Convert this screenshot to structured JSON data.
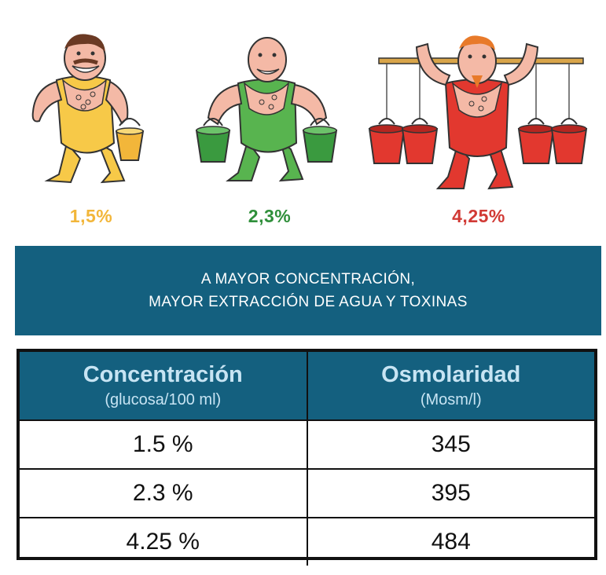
{
  "figures": [
    {
      "label": "1,5%",
      "color": "#f2b63a"
    },
    {
      "label": "2,3%",
      "color": "#2f8f3a"
    },
    {
      "label": "4,25%",
      "color": "#d13a35"
    }
  ],
  "banner": {
    "line1": "A MAYOR CONCENTRACIÓN,",
    "line2": "MAYOR EXTRACCIÓN DE AGUA Y TOXINAS"
  },
  "table": {
    "headers": [
      {
        "main": "Concentración",
        "sub": "(glucosa/100 ml)"
      },
      {
        "main": "Osmolaridad",
        "sub": "(Mosm/l)"
      }
    ],
    "rows": [
      [
        "1.5 %",
        "345"
      ],
      [
        "2.3 %",
        "395"
      ],
      [
        "4.25 %",
        "484"
      ]
    ]
  },
  "colors": {
    "banner": "#14607f",
    "header_text": "#c7e4f3",
    "skin": "#f4b9a6",
    "yellow": "#f7c948",
    "green": "#58b44f",
    "red": "#e2382f"
  }
}
